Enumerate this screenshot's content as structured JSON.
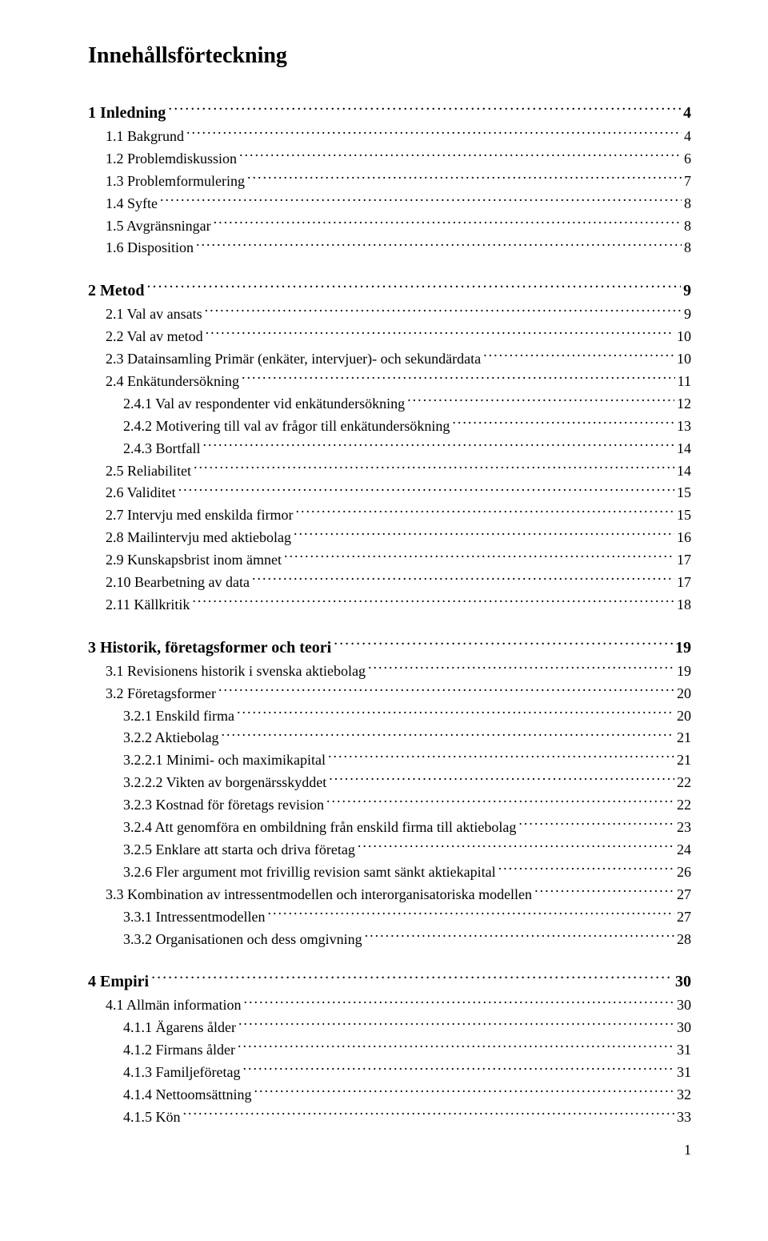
{
  "title": "Innehållsförteckning",
  "page_number": "1",
  "entries": [
    {
      "label": "1 Inledning",
      "page": "4",
      "level": 0,
      "gap_before": false
    },
    {
      "label": "1.1 Bakgrund",
      "page": "4",
      "level": 1
    },
    {
      "label": "1.2 Problemdiskussion",
      "page": "6",
      "level": 1
    },
    {
      "label": "1.3 Problemformulering",
      "page": "7",
      "level": 1
    },
    {
      "label": "1.4 Syfte",
      "page": "8",
      "level": 1
    },
    {
      "label": "1.5 Avgränsningar",
      "page": "8",
      "level": 1
    },
    {
      "label": "1.6 Disposition",
      "page": "8",
      "level": 1
    },
    {
      "label": "2 Metod",
      "page": "9",
      "level": 0,
      "gap_before": true
    },
    {
      "label": "2.1 Val av ansats",
      "page": "9",
      "level": 1
    },
    {
      "label": "2.2 Val av metod",
      "page": "10",
      "level": 1
    },
    {
      "label": "2.3 Datainsamling Primär (enkäter, intervjuer)- och sekundärdata",
      "page": "10",
      "level": 1
    },
    {
      "label": "2.4 Enkätundersökning",
      "page": "11",
      "level": 1
    },
    {
      "label": "2.4.1 Val av respondenter vid enkätundersökning",
      "page": "12",
      "level": 2
    },
    {
      "label": "2.4.2 Motivering till val av frågor till enkätundersökning",
      "page": "13",
      "level": 2
    },
    {
      "label": "2.4.3 Bortfall",
      "page": "14",
      "level": 2
    },
    {
      "label": "2.5 Reliabilitet",
      "page": "14",
      "level": 1
    },
    {
      "label": "2.6 Validitet",
      "page": "15",
      "level": 1
    },
    {
      "label": "2.7 Intervju med enskilda firmor",
      "page": "15",
      "level": 1
    },
    {
      "label": "2.8 Mailintervju med aktiebolag",
      "page": "16",
      "level": 1
    },
    {
      "label": "2.9 Kunskapsbrist inom ämnet",
      "page": "17",
      "level": 1
    },
    {
      "label": "2.10 Bearbetning av data",
      "page": "17",
      "level": 1
    },
    {
      "label": "2.11 Källkritik",
      "page": "18",
      "level": 1
    },
    {
      "label": "3 Historik, företagsformer och teori",
      "page": "19",
      "level": 0,
      "gap_before": true
    },
    {
      "label": "3.1 Revisionens historik i svenska aktiebolag",
      "page": "19",
      "level": 1
    },
    {
      "label": "3.2 Företagsformer",
      "page": "20",
      "level": 1
    },
    {
      "label": "3.2.1 Enskild firma",
      "page": "20",
      "level": 2
    },
    {
      "label": "3.2.2 Aktiebolag",
      "page": "21",
      "level": 2
    },
    {
      "label": "3.2.2.1 Minimi- och maximikapital",
      "page": "21",
      "level": 2
    },
    {
      "label": "3.2.2.2 Vikten av borgenärsskyddet",
      "page": "22",
      "level": 2
    },
    {
      "label": "3.2.3 Kostnad för företags revision",
      "page": "22",
      "level": 2
    },
    {
      "label": "3.2.4 Att genomföra en ombildning från enskild firma till aktiebolag",
      "page": "23",
      "level": 2
    },
    {
      "label": "3.2.5 Enklare att starta och driva företag",
      "page": "24",
      "level": 2
    },
    {
      "label": "3.2.6 Fler argument mot frivillig revision samt sänkt aktiekapital",
      "page": "26",
      "level": 2
    },
    {
      "label": "3.3 Kombination av intressentmodellen och interorganisatoriska modellen",
      "page": "27",
      "level": 1
    },
    {
      "label": "3.3.1 Intressentmodellen",
      "page": "27",
      "level": 2
    },
    {
      "label": "3.3.2 Organisationen och dess omgivning",
      "page": "28",
      "level": 2
    },
    {
      "label": "4 Empiri",
      "page": "30",
      "level": 0,
      "gap_before": true
    },
    {
      "label": "4.1 Allmän information",
      "page": "30",
      "level": 1
    },
    {
      "label": "4.1.1 Ägarens ålder",
      "page": "30",
      "level": 2
    },
    {
      "label": "4.1.2 Firmans ålder",
      "page": "31",
      "level": 2
    },
    {
      "label": "4.1.3 Familjeföretag",
      "page": "31",
      "level": 2
    },
    {
      "label": "4.1.4 Nettoomsättning",
      "page": "32",
      "level": 2
    },
    {
      "label": "4.1.5 Kön",
      "page": "33",
      "level": 2
    }
  ]
}
